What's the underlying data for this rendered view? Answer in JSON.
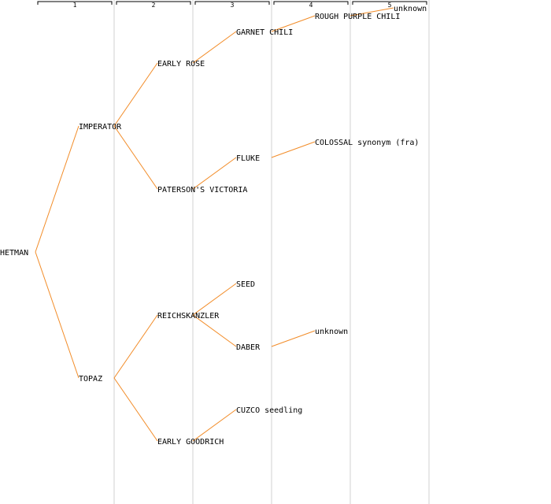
{
  "generations": [
    "1",
    "2",
    "3",
    "4",
    "5"
  ],
  "tree": {
    "label": "HETMAN",
    "parents": [
      {
        "label": "IMPERATOR",
        "parents": [
          {
            "label": "EARLY ROSE",
            "parents": [
              {
                "label": "GARNET CHILI",
                "parents": [
                  {
                    "label": "ROUGH PURPLE CHILI",
                    "parents": [
                      {
                        "label": "unknown",
                        "parents": [
                          null,
                          null
                        ]
                      },
                      null
                    ]
                  },
                  null
                ]
              },
              null
            ]
          },
          {
            "label": "PATERSON'S VICTORIA",
            "parents": [
              {
                "label": "FLUKE",
                "link": true,
                "parents": [
                  {
                    "label": "COLOSSAL synonym (fra)",
                    "parents": [
                      null,
                      null
                    ]
                  },
                  null
                ]
              },
              null
            ]
          }
        ]
      },
      {
        "label": "TOPAZ",
        "parents": [
          {
            "label": "REICHSKANZLER",
            "parents": [
              {
                "label": "SEED",
                "parents": [
                  null,
                  null
                ]
              },
              {
                "label": "DABER",
                "parents": [
                  {
                    "label": "unknown",
                    "parents": [
                      null,
                      null
                    ]
                  },
                  null
                ]
              }
            ]
          },
          {
            "label": "EARLY GOODRICH",
            "parents": [
              {
                "label": "CUZCO seedling",
                "parents": [
                  null,
                  null
                ]
              },
              null
            ]
          }
        ]
      }
    ]
  }
}
